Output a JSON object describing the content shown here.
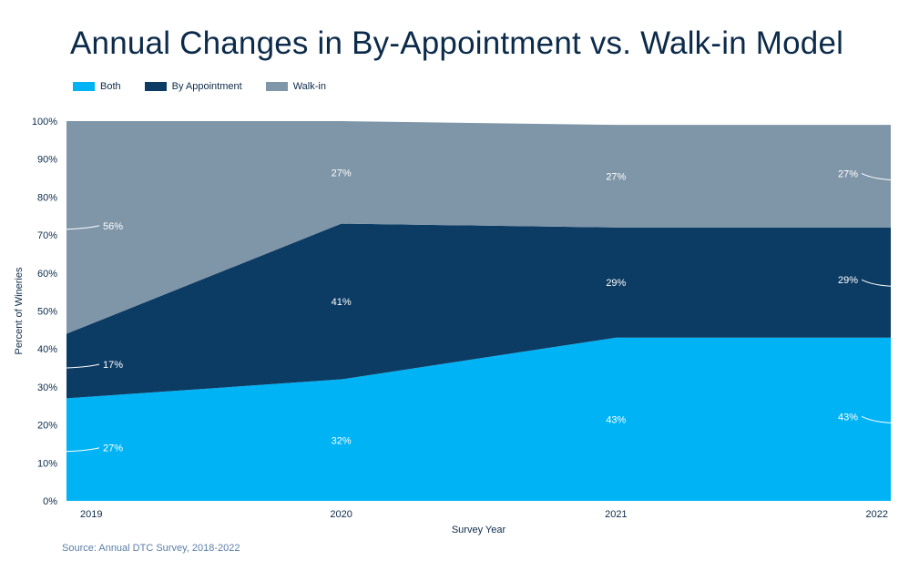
{
  "chart_data": {
    "type": "area",
    "stacked": true,
    "title": "Annual Changes in By-Appointment vs. Walk-in Model",
    "xlabel": "Survey Year",
    "ylabel": "Percent of Wineries",
    "x": [
      "2019",
      "2020",
      "2021",
      "2022"
    ],
    "ylim": [
      0,
      100
    ],
    "yticks": [
      "0%",
      "10%",
      "20%",
      "30%",
      "40%",
      "50%",
      "60%",
      "70%",
      "80%",
      "90%",
      "100%"
    ],
    "series": [
      {
        "name": "Both",
        "values": [
          27,
          32,
          43,
          43
        ],
        "labels": [
          "27%",
          "32%",
          "43%",
          "43%"
        ],
        "color": "#00b3f5"
      },
      {
        "name": "By Appointment",
        "values": [
          17,
          41,
          29,
          29
        ],
        "labels": [
          "17%",
          "41%",
          "29%",
          "29%"
        ],
        "color": "#0c3b63"
      },
      {
        "name": "Walk-in",
        "values": [
          56,
          27,
          27,
          27
        ],
        "labels": [
          "56%",
          "27%",
          "27%",
          "27%"
        ],
        "color": "#7f95a8"
      }
    ],
    "legend_position": "top-left",
    "grid": false
  },
  "source": "Source: Annual DTC Survey, 2018-2022"
}
